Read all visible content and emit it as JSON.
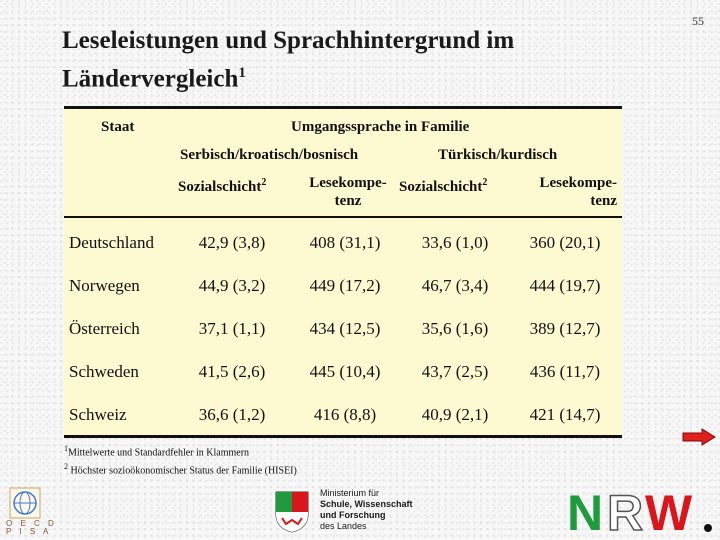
{
  "page": {
    "number": "55"
  },
  "title": {
    "main": "Leseleistungen und Sprachhintergrund im Ländervergleich",
    "sup": "1"
  },
  "table": {
    "col_staat": "Staat",
    "header_group": "Umgangssprache in Familie",
    "languages": [
      "Serbisch/kroatisch/bosnisch",
      "Türkisch/kurdisch"
    ],
    "subheaders": {
      "sozial": "Sozialschicht",
      "sozial_sup": "2",
      "lese_1": "Lesekompe-",
      "lese_2": "tenz"
    },
    "rows": [
      {
        "country": "Deutschland",
        "values": [
          "42,9 (3,8)",
          "408 (31,1)",
          "33,6 (1,0)",
          "360 (20,1)"
        ]
      },
      {
        "country": "Norwegen",
        "values": [
          "44,9 (3,2)",
          "449 (17,2)",
          "46,7 (3,4)",
          "444 (19,7)"
        ]
      },
      {
        "country": "Österreich",
        "values": [
          "37,1 (1,1)",
          "434 (12,5)",
          "35,6 (1,6)",
          "389 (12,7)"
        ]
      },
      {
        "country": "Schweden",
        "values": [
          "41,5 (2,6)",
          "445 (10,4)",
          "43,7 (2,5)",
          "436 (11,7)"
        ]
      },
      {
        "country": "Schweiz",
        "values": [
          "36,6 (1,2)",
          "416 (8,8)",
          "40,9 (2,1)",
          "421 (14,7)"
        ]
      }
    ]
  },
  "footnotes": {
    "n1_mark": "1",
    "n1": "Mittelwerte und Standardfehler in Klammern",
    "n2_mark": "2",
    "n2": " Höchster sozioökonomischer Status der Familie (HISEI)"
  },
  "logos": {
    "oecd": "O E C D",
    "pisa": "P I S A",
    "ministry_lines": [
      "Ministerium für",
      "Schule, Wissenschaft",
      "und Forschung",
      "des Landes"
    ],
    "nrw": "NRW."
  },
  "colors": {
    "table_bg": "#fdf9d0",
    "arrow": "#e0201a",
    "nrw_green": "#1f9a3c",
    "nrw_red": "#d8161c"
  },
  "icons": [
    "next-arrow-icon",
    "oecd-logo-icon",
    "nrw-crest-icon",
    "nrw-logo-icon"
  ]
}
